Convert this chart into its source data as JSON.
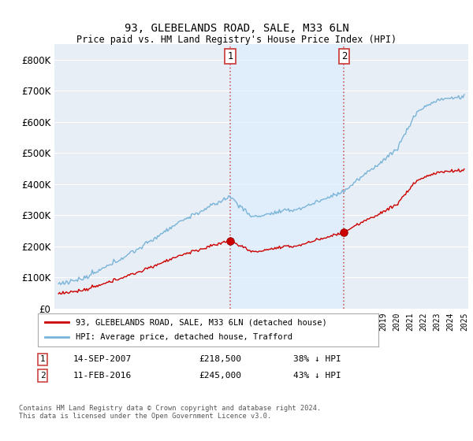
{
  "title": "93, GLEBELANDS ROAD, SALE, M33 6LN",
  "subtitle": "Price paid vs. HM Land Registry's House Price Index (HPI)",
  "ylim": [
    0,
    850000
  ],
  "yticks": [
    0,
    100000,
    200000,
    300000,
    400000,
    500000,
    600000,
    700000,
    800000
  ],
  "legend_label_red": "93, GLEBELANDS ROAD, SALE, M33 6LN (detached house)",
  "legend_label_blue": "HPI: Average price, detached house, Trafford",
  "transaction1_date": "14-SEP-2007",
  "transaction1_price": "£218,500",
  "transaction1_hpi": "38% ↓ HPI",
  "transaction2_date": "11-FEB-2016",
  "transaction2_price": "£245,000",
  "transaction2_hpi": "43% ↓ HPI",
  "footnote": "Contains HM Land Registry data © Crown copyright and database right 2024.\nThis data is licensed under the Open Government Licence v3.0.",
  "hpi_color": "#7ab4d8",
  "price_color": "#cc0000",
  "shade_color": "#ddeeff",
  "vline_color": "#cc4444"
}
